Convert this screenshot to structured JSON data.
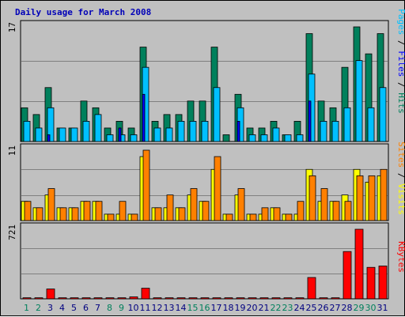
{
  "title": "Daily usage for March 2008",
  "colors": {
    "hits": "#00805c",
    "files": "#00c0ff",
    "pages": "#0000ff",
    "visits": "#ff8000",
    "sites": "#ffff00",
    "kbytes": "#ff0000",
    "weekday_label": "#000080",
    "weekend_label": "#00805c",
    "grid": "#808080",
    "plot_bg": "#c0c0c0"
  },
  "chart_data": [
    {
      "type": "bar",
      "panel": "hits-files-pages",
      "axis_max_label": "17",
      "ylim": [
        0,
        17
      ],
      "categories": [
        "1",
        "2",
        "3",
        "4",
        "5",
        "6",
        "7",
        "8",
        "9",
        "10",
        "11",
        "12",
        "13",
        "14",
        "15",
        "16",
        "17",
        "18",
        "19",
        "20",
        "21",
        "22",
        "23",
        "24",
        "25",
        "26",
        "27",
        "28",
        "29",
        "30",
        "31"
      ],
      "weekend_days": [
        "1",
        "2",
        "8",
        "9",
        "15",
        "16",
        "22",
        "23",
        "29",
        "30"
      ],
      "legend": {
        "hits": "Hits",
        "files": "Files",
        "pages": "Pages",
        "sep": " / "
      },
      "series": [
        {
          "key": "hits",
          "values": [
            5,
            4,
            8,
            2,
            2,
            6,
            5,
            2,
            3,
            2,
            14,
            3,
            4,
            4,
            6,
            6,
            14,
            1,
            7,
            2,
            2,
            3,
            1,
            3,
            16,
            6,
            5,
            11,
            17,
            13,
            16
          ]
        },
        {
          "key": "files",
          "values": [
            3,
            2,
            5,
            2,
            2,
            3,
            4,
            1,
            1,
            1,
            11,
            2,
            2,
            3,
            3,
            3,
            8,
            0,
            5,
            1,
            1,
            2,
            1,
            1,
            10,
            3,
            3,
            5,
            12,
            5,
            8
          ]
        },
        {
          "key": "pages",
          "values": [
            0,
            0,
            1,
            0,
            0,
            0,
            0,
            0,
            2,
            0,
            7,
            0,
            0,
            0,
            0,
            0,
            0,
            0,
            3,
            0,
            0,
            0,
            0,
            0,
            6,
            0,
            0,
            0,
            0,
            0,
            0
          ]
        }
      ]
    },
    {
      "type": "bar",
      "panel": "visits-sites",
      "axis_max_label": "11",
      "ylim": [
        0,
        11
      ],
      "legend": {
        "sites": "Sites",
        "visits": "Visits",
        "sep": " / "
      },
      "series": [
        {
          "key": "visits",
          "values": [
            3,
            2,
            5,
            2,
            2,
            3,
            3,
            1,
            3,
            1,
            11,
            2,
            4,
            2,
            5,
            3,
            10,
            1,
            5,
            1,
            2,
            2,
            1,
            3,
            7,
            5,
            3,
            3,
            7,
            7,
            8
          ]
        },
        {
          "key": "sites",
          "values": [
            3,
            2,
            4,
            2,
            2,
            3,
            3,
            1,
            1,
            1,
            10,
            2,
            2,
            2,
            4,
            3,
            8,
            1,
            4,
            1,
            1,
            2,
            1,
            1,
            8,
            3,
            3,
            4,
            8,
            6,
            7
          ]
        }
      ]
    },
    {
      "type": "bar",
      "panel": "kbytes",
      "axis_max_label": "721",
      "ylim": [
        0,
        721
      ],
      "legend": {
        "kbytes": "KBytes"
      },
      "series": [
        {
          "key": "kbytes",
          "values": [
            11,
            11,
            102,
            11,
            11,
            11,
            11,
            11,
            11,
            20,
            110,
            11,
            11,
            11,
            11,
            11,
            11,
            11,
            11,
            11,
            11,
            11,
            11,
            11,
            221,
            11,
            11,
            490,
            721,
            326,
            340
          ]
        }
      ]
    }
  ]
}
